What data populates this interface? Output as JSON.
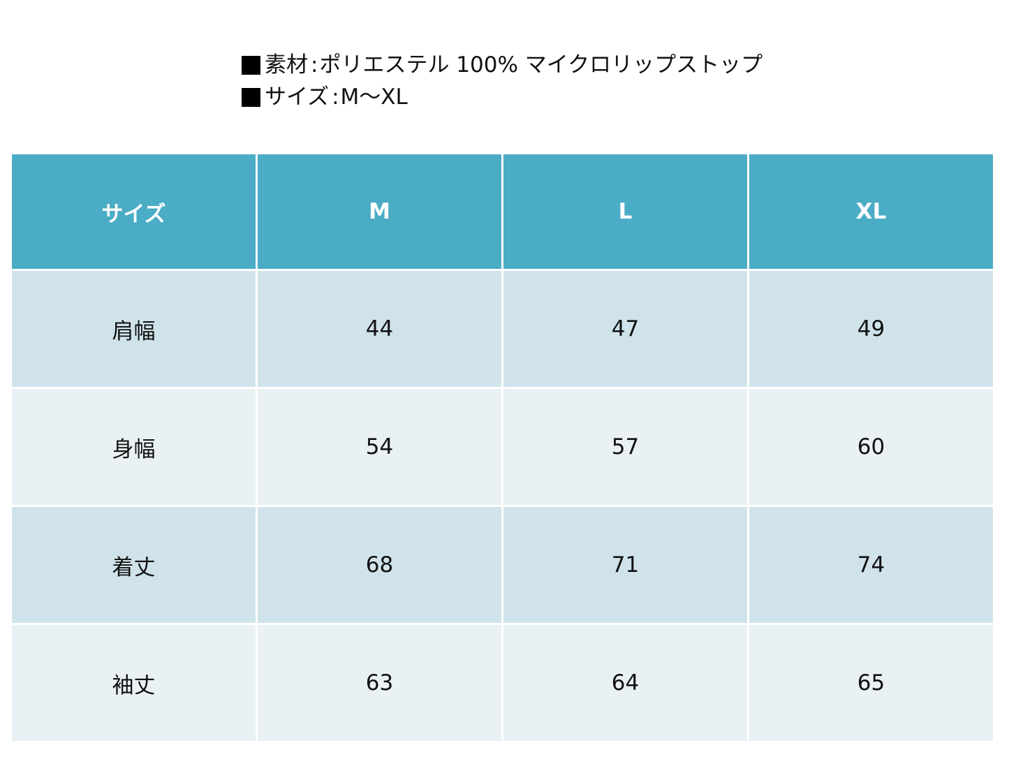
{
  "specs": [
    {
      "label": "素材",
      "value": "ポリエステル 100% マイクロリップストップ"
    },
    {
      "label": "サイズ",
      "value": "M～XL"
    }
  ],
  "table": {
    "header": [
      "サイズ",
      "M",
      "L",
      "XL"
    ],
    "rows": [
      {
        "label": "肩幅",
        "values": [
          "44",
          "47",
          "49"
        ]
      },
      {
        "label": "身幅",
        "values": [
          "54",
          "57",
          "60"
        ]
      },
      {
        "label": "着丈",
        "values": [
          "68",
          "71",
          "74"
        ]
      },
      {
        "label": "袖丈",
        "values": [
          "63",
          "64",
          "65"
        ]
      }
    ]
  },
  "colors": {
    "header_bg": "#4bacc6",
    "row_odd_bg": "#d0e3ea",
    "row_even_bg": "#e9f1f4",
    "header_text": "#ffffff"
  }
}
